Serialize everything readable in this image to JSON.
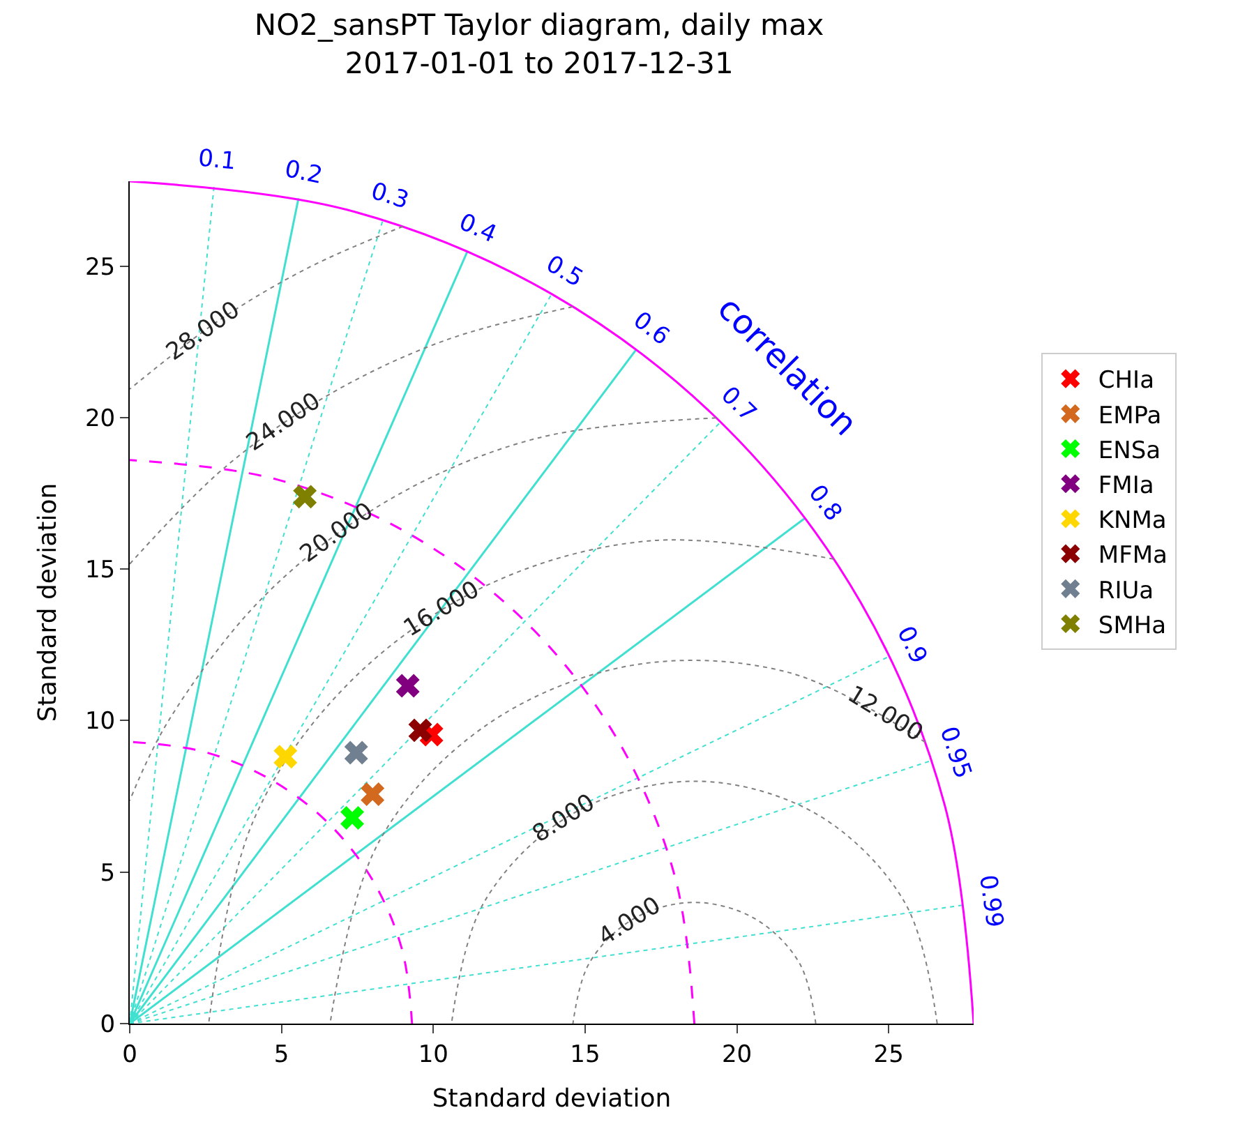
{
  "chart_data": {
    "type": "scatter",
    "title": "NO2_sansPT Taylor diagram, daily max\n2017-01-01 to 2017-12-31",
    "xlabel": "Standard deviation",
    "ylabel": "Standard deviation",
    "xlim": [
      0,
      27.8
    ],
    "ylim": [
      0,
      27.8
    ],
    "xticks": [
      0,
      5,
      10,
      15,
      20,
      25
    ],
    "yticks": [
      0,
      5,
      10,
      15,
      20,
      25
    ],
    "legend": "right",
    "series": [
      {
        "name": "CHIa",
        "color": "#ff0000",
        "marker": "cross",
        "x": [
          9.94
        ],
        "values": [
          9.54
        ]
      },
      {
        "name": "EMPa",
        "color": "#d2691e",
        "marker": "cross",
        "x": [
          8.0
        ],
        "values": [
          7.57
        ]
      },
      {
        "name": "ENSa",
        "color": "#00ff00",
        "marker": "cross",
        "x": [
          7.33
        ],
        "values": [
          6.79
        ]
      },
      {
        "name": "FMIa",
        "color": "#800080",
        "marker": "cross",
        "x": [
          9.16
        ],
        "values": [
          11.15
        ]
      },
      {
        "name": "KNMa",
        "color": "#ffd700",
        "marker": "cross",
        "x": [
          5.13
        ],
        "values": [
          8.81
        ]
      },
      {
        "name": "MFMa",
        "color": "#8b0000",
        "marker": "cross",
        "x": [
          9.57
        ],
        "values": [
          9.68
        ]
      },
      {
        "name": "RIUa",
        "color": "#708090",
        "marker": "cross",
        "x": [
          7.46
        ],
        "values": [
          8.94
        ]
      },
      {
        "name": "SMHa",
        "color": "#808000",
        "marker": "cross",
        "x": [
          5.77
        ],
        "values": [
          17.39
        ]
      },
      {
        "type": "line",
        "name": "0.1",
        "color": "#40e0d0",
        "line_style": "dotted",
        "x": [
          0,
          2.78
        ],
        "values": [
          0,
          27.66
        ]
      },
      {
        "type": "line",
        "name": "0.2",
        "color": "#40e0d0",
        "line_style": "solid",
        "x": [
          0,
          5.56
        ],
        "values": [
          0,
          27.24
        ]
      },
      {
        "type": "line",
        "name": "0.3",
        "color": "#40e0d0",
        "line_style": "dotted",
        "x": [
          0,
          8.34
        ],
        "values": [
          0,
          26.52
        ]
      },
      {
        "type": "line",
        "name": "0.4",
        "color": "#40e0d0",
        "line_style": "solid",
        "x": [
          0,
          11.12
        ],
        "values": [
          0,
          25.48
        ]
      },
      {
        "type": "line",
        "name": "0.5",
        "color": "#40e0d0",
        "line_style": "dotted",
        "x": [
          0,
          13.9
        ],
        "values": [
          0,
          24.08
        ]
      },
      {
        "type": "line",
        "name": "0.6",
        "color": "#40e0d0",
        "line_style": "solid",
        "x": [
          0,
          16.68
        ],
        "values": [
          0,
          22.24
        ]
      },
      {
        "type": "line",
        "name": "0.7",
        "color": "#40e0d0",
        "line_style": "dotted",
        "x": [
          0,
          19.46
        ],
        "values": [
          0,
          19.85
        ]
      },
      {
        "type": "line",
        "name": "0.8",
        "color": "#40e0d0",
        "line_style": "solid",
        "x": [
          0,
          22.24
        ],
        "values": [
          0,
          16.68
        ]
      },
      {
        "type": "line",
        "name": "0.9",
        "color": "#40e0d0",
        "line_style": "dotted",
        "x": [
          0,
          25.02
        ],
        "values": [
          0,
          12.12
        ]
      },
      {
        "type": "line",
        "name": "0.95",
        "color": "#40e0d0",
        "line_style": "dotted",
        "x": [
          0,
          26.41
        ],
        "values": [
          0,
          8.68
        ]
      },
      {
        "type": "line",
        "name": "0.99",
        "color": "#40e0d0",
        "line_style": "dotted",
        "x": [
          0,
          27.52
        ],
        "values": [
          0,
          3.92
        ]
      },
      {
        "type": "line",
        "color": "#ff00ff",
        "line_style": "solid",
        "x": [
          27.8,
          26.85,
          24.08,
          19.66,
          13.9,
          7.2,
          0
        ],
        "values": [
          0,
          7.2,
          13.9,
          19.66,
          24.08,
          26.85,
          27.8
        ]
      },
      {
        "type": "line",
        "color": "#ff00ff",
        "line_style": "dashed",
        "x": [
          18.6,
          17.97,
          16.11,
          13.15,
          9.3,
          4.81,
          0
        ],
        "values": [
          0,
          4.81,
          9.3,
          13.15,
          16.11,
          17.97,
          18.6
        ]
      },
      {
        "type": "line",
        "color": "#ff00ff",
        "line_style": "dashed",
        "x": [
          9.3,
          8.98,
          8.05,
          6.58,
          4.65,
          2.41,
          0
        ],
        "values": [
          0,
          2.41,
          4.65,
          6.58,
          8.05,
          8.98,
          9.3
        ]
      },
      {
        "type": "line",
        "name": "4.000",
        "color": "#808080",
        "line_style": "dotted",
        "x": [
          22.6,
          22.06,
          20.6,
          18.6,
          16.6,
          15.14,
          14.6
        ],
        "values": [
          0,
          2,
          3.46,
          4,
          3.46,
          2,
          0
        ]
      },
      {
        "type": "line",
        "name": "8.000",
        "color": "#808080",
        "line_style": "dotted",
        "x": [
          26.6,
          25.53,
          22.6,
          18.6,
          14.6,
          11.67,
          10.6
        ],
        "values": [
          0,
          4,
          6.93,
          8,
          6.93,
          4,
          0
        ]
      },
      {
        "type": "line",
        "name": "12.000",
        "color": "#808080",
        "line_style": "dotted",
        "x": [
          26.2,
          21.7,
          16.52,
          11.72,
          8.21,
          6.6
        ],
        "values": [
          9.29,
          11.59,
          11.82,
          9.83,
          6,
          0
        ]
      },
      {
        "type": "line",
        "name": "16.000",
        "color": "#808080",
        "line_style": "dotted",
        "x": [
          23.19,
          17.21,
          11.84,
          7.29,
          4.1,
          2.6
        ],
        "values": [
          15.33,
          15.94,
          14.5,
          11.31,
          6.76,
          0
        ]
      },
      {
        "type": "line",
        "name": "20.000",
        "color": "#808080",
        "line_style": "dotted",
        "x": [
          19.32,
          13.42,
          8.6,
          4.46,
          1.28,
          0
        ],
        "values": [
          19.99,
          19.32,
          17.32,
          14.14,
          10,
          7.36
        ]
      },
      {
        "type": "line",
        "name": "24.000",
        "color": "#808080",
        "line_style": "dotted",
        "x": [
          14.59,
          10.39,
          6.6,
          3.17,
          0
        ],
        "values": [
          23.66,
          22.55,
          20.78,
          18.39,
          15.17
        ]
      },
      {
        "type": "line",
        "name": "28.000",
        "color": "#808080",
        "line_style": "dotted",
        "x": [
          9.0,
          5.89,
          2.94,
          0
        ],
        "values": [
          26.31,
          24.95,
          23.21,
          20.94
        ]
      }
    ],
    "annotations": [
      "correlation"
    ]
  }
}
